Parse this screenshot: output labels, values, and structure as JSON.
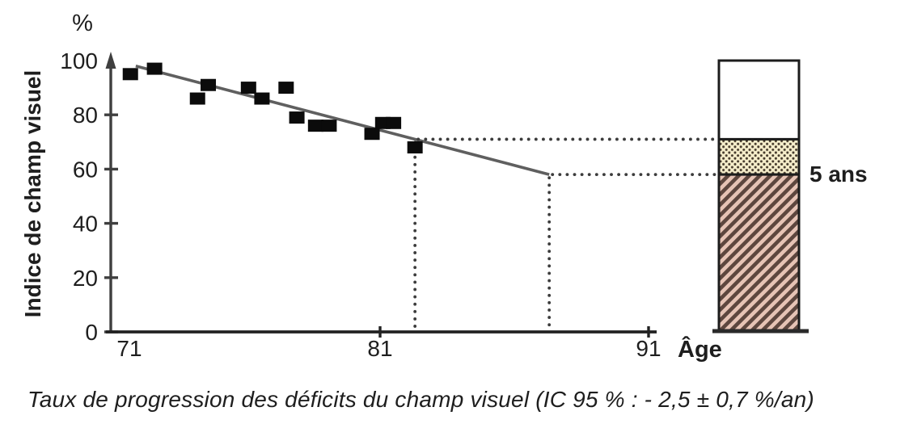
{
  "figure": {
    "caption": "Taux de progression des déficits du champ visuel (IC 95 % : - 2,5 ± 0,7 %/an)"
  },
  "chart_data": {
    "type": "scatter",
    "title": "",
    "xlabel": "Âge",
    "ylabel": "Indice de champ visuel",
    "y_unit_label": "%",
    "xlim": [
      71,
      91
    ],
    "ylim": [
      0,
      100
    ],
    "x_ticks": [
      71,
      81,
      91
    ],
    "y_ticks": [
      0,
      20,
      40,
      60,
      80,
      100
    ],
    "grid": false,
    "legend_position": "none",
    "points": [
      {
        "x": 71.7,
        "y": 95
      },
      {
        "x": 72.6,
        "y": 97
      },
      {
        "x": 74.2,
        "y": 86
      },
      {
        "x": 74.6,
        "y": 91
      },
      {
        "x": 76.1,
        "y": 90
      },
      {
        "x": 76.6,
        "y": 86
      },
      {
        "x": 77.5,
        "y": 90
      },
      {
        "x": 77.9,
        "y": 79
      },
      {
        "x": 78.6,
        "y": 76
      },
      {
        "x": 79.1,
        "y": 76
      },
      {
        "x": 80.7,
        "y": 73
      },
      {
        "x": 81.1,
        "y": 77
      },
      {
        "x": 81.5,
        "y": 77
      },
      {
        "x": 82.3,
        "y": 68
      }
    ],
    "regression_line": {
      "x1": 71.9,
      "y1": 98,
      "x2": 87.3,
      "y2": 58
    },
    "reference_marks": [
      {
        "age": 82.3,
        "value": 71
      },
      {
        "age": 87.3,
        "value": 58
      }
    ],
    "annotation_bar": {
      "label": "5 ans",
      "segments": [
        {
          "name": "remaining",
          "from": 71,
          "to": 100,
          "pattern": "plain",
          "fill": "#ffffff",
          "accent": "#1c1c1c"
        },
        {
          "name": "five-year-loss",
          "from": 58,
          "to": 71,
          "pattern": "stippled",
          "fill": "#f6eecb",
          "accent": "#44392b"
        },
        {
          "name": "deficit",
          "from": 0,
          "to": 58,
          "pattern": "hatched",
          "fill": "#e6c3b5",
          "accent": "#5d463e"
        }
      ]
    },
    "colors": {
      "point": "#0b0b0b",
      "axis": "#3f3f3f",
      "x_axis": "#222222",
      "regression": "#5f5f5f",
      "dotted": "#3c3c3c",
      "text": "#1e1e1e",
      "bar_border": "#1c1c1c",
      "baseline": "#2a2a2a"
    }
  }
}
